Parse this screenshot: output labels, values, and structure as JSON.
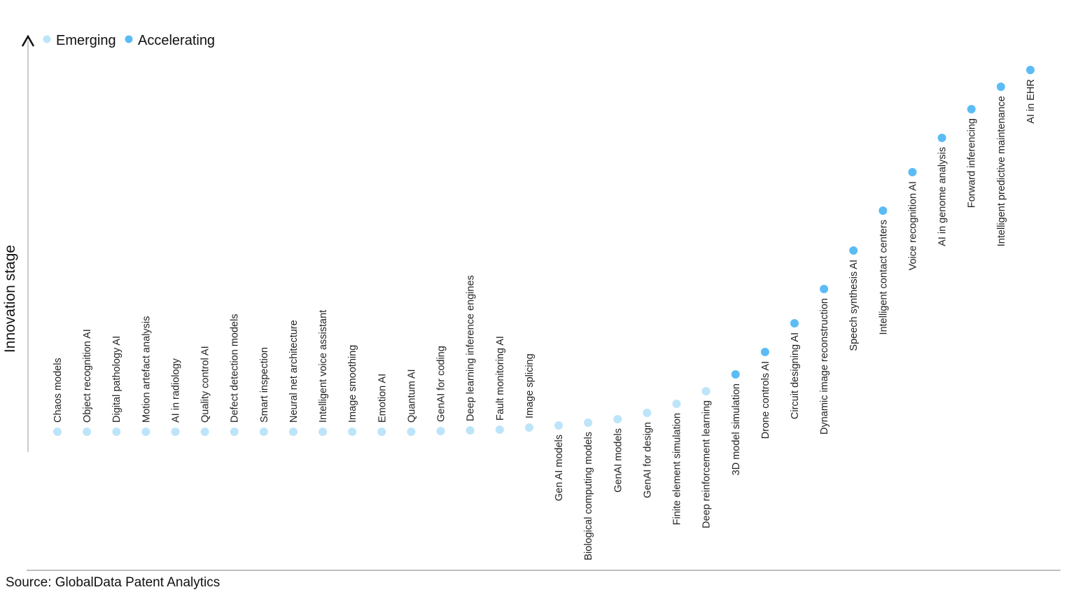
{
  "chart_data": {
    "type": "scatter",
    "title": "",
    "ylabel": "Innovation stage",
    "xlabel": "",
    "legend": {
      "placement": "top-left",
      "entries": [
        {
          "name": "Emerging",
          "color": "#bde5f9"
        },
        {
          "name": "Accelerating",
          "color": "#5bbcf5"
        }
      ]
    },
    "grid": false,
    "points": [
      {
        "label": "Chaos models",
        "stage": "Emerging"
      },
      {
        "label": "Object recognition AI",
        "stage": "Emerging"
      },
      {
        "label": "Digital pathology AI",
        "stage": "Emerging"
      },
      {
        "label": "Motion artefact analysis",
        "stage": "Emerging"
      },
      {
        "label": "AI in radiology",
        "stage": "Emerging"
      },
      {
        "label": "Quality control AI",
        "stage": "Emerging"
      },
      {
        "label": "Defect detection models",
        "stage": "Emerging"
      },
      {
        "label": "Smart inspection",
        "stage": "Emerging"
      },
      {
        "label": "Neural net architecture",
        "stage": "Emerging"
      },
      {
        "label": "Intelligent voice assistant",
        "stage": "Emerging"
      },
      {
        "label": "Image smoothing",
        "stage": "Emerging"
      },
      {
        "label": "Emotion AI",
        "stage": "Emerging"
      },
      {
        "label": "Quantum AI",
        "stage": "Emerging"
      },
      {
        "label": "GenAI for coding",
        "stage": "Emerging"
      },
      {
        "label": "Deep learning inference engines",
        "stage": "Emerging"
      },
      {
        "label": "Fault monitoring AI",
        "stage": "Emerging"
      },
      {
        "label": "Image splicing",
        "stage": "Emerging"
      },
      {
        "label": "Gen AI models",
        "stage": "Emerging"
      },
      {
        "label": "Biological computing models",
        "stage": "Emerging"
      },
      {
        "label": "GenAI models",
        "stage": "Emerging"
      },
      {
        "label": "GenAI for design",
        "stage": "Emerging"
      },
      {
        "label": "Finite element simulation",
        "stage": "Emerging"
      },
      {
        "label": "Deep reinforcement learning",
        "stage": "Emerging"
      },
      {
        "label": "3D model simulation",
        "stage": "Accelerating"
      },
      {
        "label": "Drone controls AI",
        "stage": "Accelerating"
      },
      {
        "label": "Circuit designing AI",
        "stage": "Accelerating"
      },
      {
        "label": "Dynamic image reconstruction",
        "stage": "Accelerating"
      },
      {
        "label": "Speech synthesis AI",
        "stage": "Accelerating"
      },
      {
        "label": "Intelligent contact centers",
        "stage": "Accelerating"
      },
      {
        "label": "Voice recognition AI",
        "stage": "Accelerating"
      },
      {
        "label": "AI in genome analysis",
        "stage": "Accelerating"
      },
      {
        "label": "Forward inferencing",
        "stage": "Accelerating"
      },
      {
        "label": "Intelligent predictive maintenance",
        "stage": "Accelerating"
      },
      {
        "label": "AI in EHR",
        "stage": "Accelerating"
      }
    ]
  },
  "source": "Source: GlobalData Patent Analytics"
}
